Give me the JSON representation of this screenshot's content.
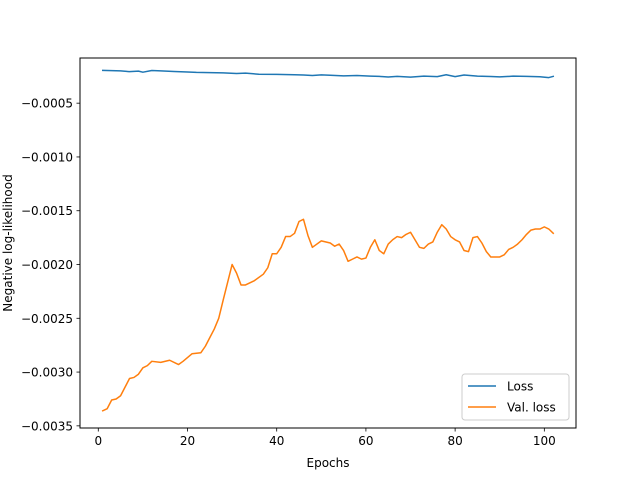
{
  "chart_data": {
    "type": "line",
    "title": "",
    "xlabel": "Epochs",
    "ylabel": "Negative log-likelihood",
    "xlim": [
      -4.1,
      107.1
    ],
    "ylim": [
      -0.00352,
      -8e-05
    ],
    "xticks": [
      0,
      20,
      40,
      60,
      80,
      100
    ],
    "xtick_labels": [
      "0",
      "20",
      "40",
      "60",
      "80",
      "100"
    ],
    "yticks": [
      -0.0005,
      -0.001,
      -0.0015,
      -0.002,
      -0.0025,
      -0.003,
      -0.0035
    ],
    "ytick_labels": [
      "−0.0005",
      "−0.0010",
      "−0.0015",
      "−0.0020",
      "−0.0025",
      "−0.0030",
      "−0.0035"
    ],
    "grid": false,
    "legend_position": "bottom-right",
    "colors": {
      "loss": "#1f77b4",
      "val_loss": "#ff7f0e",
      "axes": "#000000"
    },
    "series": [
      {
        "name": "Loss",
        "color": "#1f77b4",
        "points": [
          [
            1,
            -0.000195
          ],
          [
            3,
            -0.000197
          ],
          [
            5,
            -0.0002
          ],
          [
            7,
            -0.000207
          ],
          [
            9,
            -0.000202
          ],
          [
            10,
            -0.000212
          ],
          [
            12,
            -0.000196
          ],
          [
            14,
            -0.0002
          ],
          [
            17,
            -0.000205
          ],
          [
            20,
            -0.00021
          ],
          [
            22,
            -0.000214
          ],
          [
            25,
            -0.000216
          ],
          [
            28,
            -0.000218
          ],
          [
            31,
            -0.000224
          ],
          [
            33,
            -0.000221
          ],
          [
            36,
            -0.000231
          ],
          [
            40,
            -0.000232
          ],
          [
            44,
            -0.000236
          ],
          [
            46,
            -0.000238
          ],
          [
            48,
            -0.000243
          ],
          [
            50,
            -0.000237
          ],
          [
            52,
            -0.00024
          ],
          [
            55,
            -0.000246
          ],
          [
            58,
            -0.000243
          ],
          [
            61,
            -0.000248
          ],
          [
            63,
            -0.000251
          ],
          [
            65,
            -0.000257
          ],
          [
            67,
            -0.000251
          ],
          [
            70,
            -0.000258
          ],
          [
            73,
            -0.000248
          ],
          [
            76,
            -0.000253
          ],
          [
            78,
            -0.000236
          ],
          [
            80,
            -0.000253
          ],
          [
            82,
            -0.000238
          ],
          [
            85,
            -0.000248
          ],
          [
            88,
            -0.000252
          ],
          [
            90,
            -0.000256
          ],
          [
            93,
            -0.000249
          ],
          [
            96,
            -0.000251
          ],
          [
            99,
            -0.000254
          ],
          [
            101,
            -0.000262
          ],
          [
            102,
            -0.000251
          ]
        ]
      },
      {
        "name": "Val. loss",
        "color": "#ff7f0e",
        "points": [
          [
            1,
            -0.00336
          ],
          [
            2,
            -0.00334
          ],
          [
            3,
            -0.00326
          ],
          [
            4,
            -0.00325
          ],
          [
            5,
            -0.00322
          ],
          [
            6,
            -0.00314
          ],
          [
            7,
            -0.00306
          ],
          [
            8,
            -0.00305
          ],
          [
            9,
            -0.00302
          ],
          [
            10,
            -0.00296
          ],
          [
            11,
            -0.00294
          ],
          [
            12,
            -0.0029
          ],
          [
            14,
            -0.00291
          ],
          [
            16,
            -0.00289
          ],
          [
            18,
            -0.00293
          ],
          [
            19,
            -0.0029
          ],
          [
            21,
            -0.00283
          ],
          [
            23,
            -0.00282
          ],
          [
            24,
            -0.00276
          ],
          [
            25,
            -0.00268
          ],
          [
            26,
            -0.0026
          ],
          [
            27,
            -0.0025
          ],
          [
            28,
            -0.00233
          ],
          [
            30,
            -0.002
          ],
          [
            31,
            -0.00208
          ],
          [
            32,
            -0.00219
          ],
          [
            33,
            -0.00219
          ],
          [
            35,
            -0.00215
          ],
          [
            37,
            -0.00209
          ],
          [
            38,
            -0.00203
          ],
          [
            39,
            -0.0019
          ],
          [
            40,
            -0.0019
          ],
          [
            41,
            -0.00184
          ],
          [
            42,
            -0.00174
          ],
          [
            43,
            -0.00174
          ],
          [
            44,
            -0.00171
          ],
          [
            45,
            -0.0016
          ],
          [
            46,
            -0.00158
          ],
          [
            47,
            -0.00173
          ],
          [
            48,
            -0.00184
          ],
          [
            50,
            -0.00178
          ],
          [
            52,
            -0.0018
          ],
          [
            53,
            -0.00183
          ],
          [
            54,
            -0.00181
          ],
          [
            55,
            -0.00187
          ],
          [
            56,
            -0.00197
          ],
          [
            57,
            -0.00195
          ],
          [
            58,
            -0.00193
          ],
          [
            59,
            -0.00195
          ],
          [
            60,
            -0.00194
          ],
          [
            61,
            -0.00184
          ],
          [
            62,
            -0.00177
          ],
          [
            63,
            -0.00187
          ],
          [
            64,
            -0.0019
          ],
          [
            65,
            -0.00181
          ],
          [
            66,
            -0.00177
          ],
          [
            67,
            -0.00174
          ],
          [
            68,
            -0.00175
          ],
          [
            69,
            -0.00172
          ],
          [
            70,
            -0.0017
          ],
          [
            71,
            -0.00177
          ],
          [
            72,
            -0.00184
          ],
          [
            73,
            -0.00185
          ],
          [
            74,
            -0.00181
          ],
          [
            75,
            -0.00179
          ],
          [
            76,
            -0.0017
          ],
          [
            77,
            -0.00163
          ],
          [
            78,
            -0.00167
          ],
          [
            79,
            -0.00174
          ],
          [
            80,
            -0.00177
          ],
          [
            81,
            -0.00179
          ],
          [
            82,
            -0.00187
          ],
          [
            83,
            -0.00188
          ],
          [
            84,
            -0.00175
          ],
          [
            85,
            -0.00174
          ],
          [
            86,
            -0.0018
          ],
          [
            87,
            -0.00188
          ],
          [
            88,
            -0.00193
          ],
          [
            89,
            -0.00193
          ],
          [
            90,
            -0.00193
          ],
          [
            91,
            -0.00191
          ],
          [
            92,
            -0.00186
          ],
          [
            93,
            -0.00184
          ],
          [
            94,
            -0.00181
          ],
          [
            95,
            -0.00177
          ],
          [
            96,
            -0.00172
          ],
          [
            97,
            -0.00168
          ],
          [
            98,
            -0.00167
          ],
          [
            99,
            -0.00167
          ],
          [
            100,
            -0.00165
          ],
          [
            101,
            -0.00167
          ],
          [
            102,
            -0.00171
          ]
        ]
      }
    ]
  }
}
